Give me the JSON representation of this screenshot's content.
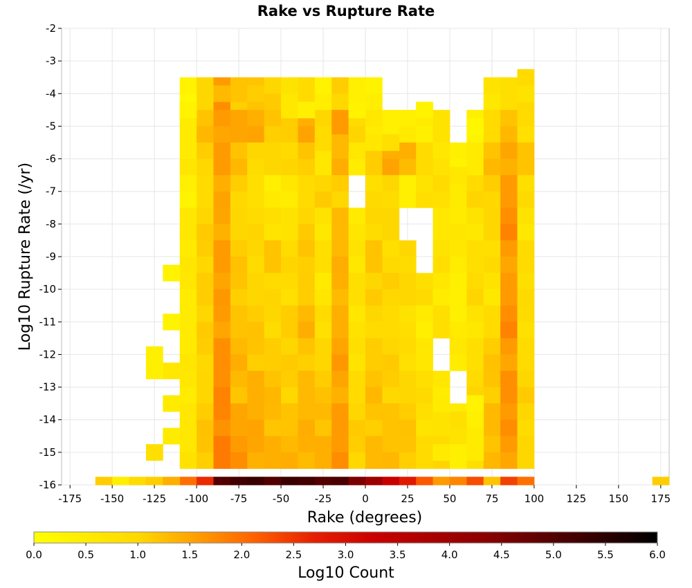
{
  "chart_data": {
    "type": "heatmap",
    "title": "Rake vs Rupture Rate",
    "xlabel": "Rake (degrees)",
    "ylabel": "Log10 Rupture Rate (/yr)",
    "xlim": [
      -180,
      180
    ],
    "ylim": [
      -16,
      -2
    ],
    "x_ticks": [
      -175,
      -150,
      -125,
      -100,
      -75,
      -50,
      -25,
      0,
      25,
      50,
      75,
      100,
      125,
      150,
      175
    ],
    "y_ticks": [
      -2,
      -3,
      -4,
      -5,
      -6,
      -7,
      -8,
      -9,
      -10,
      -11,
      -12,
      -13,
      -14,
      -15,
      -16
    ],
    "x_tick_labels": [
      "-175",
      "-150",
      "-125",
      "-100",
      "-75",
      "-50",
      "-25",
      "0",
      "25",
      "50",
      "75",
      "100",
      "125",
      "150",
      "175"
    ],
    "y_tick_labels": [
      "-2",
      "-3",
      "-4",
      "-5",
      "-6",
      "-7",
      "-8",
      "-9",
      "-10",
      "-11",
      "-12",
      "-13",
      "-14",
      "-15",
      "-16"
    ],
    "grid": true,
    "bin_width": 10,
    "bin_height": 0.5,
    "colorbar": {
      "label": "Log10 Count",
      "min": 0.0,
      "max": 6.0,
      "ticks": [
        0.0,
        0.5,
        1.0,
        1.5,
        2.0,
        2.5,
        3.0,
        3.5,
        4.0,
        4.5,
        5.0,
        5.5,
        6.0
      ],
      "tick_labels": [
        "0.0",
        "0.5",
        "1.0",
        "1.5",
        "2.0",
        "2.5",
        "3.0",
        "3.5",
        "4.0",
        "4.5",
        "5.0",
        "5.5",
        "6.0"
      ],
      "colors": [
        "#ffff00",
        "#ffd700",
        "#ffa500",
        "#ff6400",
        "#e61e00",
        "#c80000",
        "#8c0000",
        "#000000"
      ]
    },
    "rake_bins": [
      -105,
      -95,
      -85,
      -75,
      -65,
      -55,
      -45,
      -35,
      -25,
      -15,
      -5,
      5,
      15,
      25,
      35,
      45,
      55,
      65,
      75,
      85,
      95
    ],
    "rate_rows": [
      -4,
      -5,
      -6,
      -7,
      -8,
      -9,
      -10,
      -11,
      -12,
      -13,
      -14,
      -15,
      -16
    ],
    "grid_values": [
      [
        0.3,
        1.0,
        1.6,
        1.2,
        1.2,
        1.0,
        0.7,
        0.9,
        0.3,
        1.1,
        0.4,
        0.3,
        null,
        null,
        null,
        null,
        null,
        null,
        0.7,
        0.8,
        0.8
      ],
      [
        0.5,
        1.2,
        1.6,
        1.5,
        1.4,
        1.2,
        1.1,
        1.4,
        1.0,
        1.6,
        0.9,
        0.6,
        0.4,
        0.4,
        0.5,
        0.7,
        null,
        0.4,
        0.9,
        1.2,
        0.9
      ],
      [
        0.5,
        1.1,
        1.6,
        1.2,
        1.0,
        1.0,
        0.9,
        1.2,
        0.6,
        1.3,
        0.6,
        1.1,
        1.4,
        1.4,
        0.9,
        0.6,
        0.4,
        0.5,
        1.2,
        1.5,
        1.2
      ],
      [
        0.4,
        0.9,
        1.4,
        1.1,
        0.8,
        0.4,
        0.6,
        0.9,
        1.0,
        1.1,
        null,
        0.8,
        1.0,
        0.4,
        0.7,
        0.9,
        0.5,
        0.9,
        1.1,
        1.6,
        0.8
      ],
      [
        0.6,
        1.0,
        1.5,
        1.0,
        0.9,
        0.8,
        0.7,
        1.0,
        0.7,
        1.3,
        0.5,
        1.0,
        1.0,
        null,
        null,
        0.6,
        0.5,
        0.7,
        1.0,
        1.7,
        0.7
      ],
      [
        0.5,
        1.1,
        1.6,
        1.1,
        1.0,
        1.2,
        0.9,
        1.2,
        0.8,
        1.3,
        0.7,
        1.2,
        0.8,
        1.0,
        null,
        0.7,
        0.6,
        0.8,
        0.8,
        1.6,
        0.9
      ],
      [
        0.6,
        1.1,
        1.5,
        1.2,
        1.0,
        0.9,
        0.9,
        1.1,
        0.5,
        1.4,
        0.8,
        1.0,
        1.1,
        1.0,
        0.8,
        0.6,
        0.4,
        0.9,
        0.7,
        1.6,
        0.8
      ],
      [
        0.5,
        1.0,
        1.6,
        1.2,
        1.1,
        1.0,
        1.1,
        1.3,
        0.9,
        1.4,
        0.6,
        1.0,
        0.9,
        0.7,
        0.5,
        0.8,
        0.4,
        0.7,
        0.9,
        1.7,
        0.9
      ],
      [
        0.5,
        1.1,
        1.7,
        1.3,
        1.2,
        1.1,
        1.0,
        1.2,
        1.0,
        1.5,
        0.8,
        1.1,
        1.0,
        0.9,
        0.6,
        null,
        0.6,
        0.8,
        1.1,
        1.6,
        0.9
      ],
      [
        0.6,
        1.0,
        1.7,
        1.3,
        1.4,
        1.2,
        1.1,
        1.3,
        1.1,
        1.5,
        0.9,
        1.2,
        1.1,
        1.0,
        0.8,
        0.6,
        null,
        0.9,
        1.2,
        1.7,
        1.0
      ],
      [
        0.6,
        1.1,
        1.8,
        1.5,
        1.4,
        1.3,
        1.2,
        1.3,
        1.3,
        1.6,
        1.0,
        1.2,
        1.2,
        1.1,
        0.8,
        0.7,
        0.5,
        0.8,
        1.3,
        1.6,
        1.0
      ],
      [
        0.6,
        1.2,
        1.9,
        1.6,
        1.5,
        1.4,
        1.3,
        1.4,
        1.4,
        1.6,
        1.1,
        1.3,
        1.2,
        1.2,
        0.9,
        0.9,
        0.5,
        0.8,
        1.2,
        1.6,
        1.0
      ],
      [
        2.0,
        2.6,
        5.0,
        5.2,
        5.3,
        5.0,
        5.3,
        5.2,
        5.0,
        5.1,
        4.5,
        4.0,
        3.3,
        2.8,
        2.2,
        1.6,
        1.8,
        2.3,
        1.2,
        2.4,
        2.0
      ]
    ],
    "sparse_cells": [
      {
        "rake": -105,
        "rate": -4.5,
        "value": 0.3
      },
      {
        "rake": -75,
        "rate": -4.0,
        "value": 1.2
      },
      {
        "rake": -85,
        "rate": -4.0,
        "value": 1.3
      },
      {
        "rake": -65,
        "rate": -4.0,
        "value": 1.1
      },
      {
        "rake": -45,
        "rate": -4.5,
        "value": 0.6
      },
      {
        "rake": -35,
        "rate": -4.5,
        "value": 0.4
      },
      {
        "rake": -25,
        "rate": -5.5,
        "value": 0.9
      },
      {
        "rake": -15,
        "rate": -5.5,
        "value": 1.3
      },
      {
        "rake": -5,
        "rate": -4.5,
        "value": 0.3
      },
      {
        "rake": 5,
        "rate": -5.5,
        "value": 0.6
      },
      {
        "rake": 15,
        "rate": -5.5,
        "value": 0.8
      },
      {
        "rake": 35,
        "rate": -4.5,
        "value": 0.3
      },
      {
        "rake": 55,
        "rate": -6.5,
        "value": 0.6
      },
      {
        "rake": 65,
        "rate": -5.0,
        "value": 0.2
      },
      {
        "rake": 95,
        "rate": -3.5,
        "value": 0.9
      },
      {
        "rake": 95,
        "rate": -4.0,
        "value": 0.7
      },
      {
        "rake": -115,
        "rate": -9.5,
        "value": 0.3
      },
      {
        "rake": -115,
        "rate": -11.0,
        "value": 0.3
      },
      {
        "rake": -115,
        "rate": -12.5,
        "value": 0.6
      },
      {
        "rake": -115,
        "rate": -13.5,
        "value": 0.5
      },
      {
        "rake": -115,
        "rate": -14.5,
        "value": 0.5
      },
      {
        "rake": -125,
        "rate": -12.0,
        "value": 0.4
      },
      {
        "rake": -125,
        "rate": -12.5,
        "value": 0.4
      },
      {
        "rake": -125,
        "rate": -15.0,
        "value": 0.8
      },
      {
        "rake": 65,
        "rate": -13.5,
        "value": 0.3
      },
      {
        "rake": 55,
        "rate": -14.0,
        "value": 0.8
      },
      {
        "rake": 55,
        "rate": -14.5,
        "value": 0.7
      },
      {
        "rake": 65,
        "rate": -14.0,
        "value": 0.4
      },
      {
        "rake": 45,
        "rate": -13.5,
        "value": 0.5
      },
      {
        "rake": 45,
        "rate": -15.0,
        "value": 0.5
      },
      {
        "rake": 55,
        "rate": -15.0,
        "value": 0.4
      },
      {
        "rake": 65,
        "rate": -15.0,
        "value": 0.5
      },
      {
        "rake": 65,
        "rate": -14.5,
        "value": 0.5
      },
      {
        "rake": -155,
        "rate": -16.0,
        "value": 1.1
      },
      {
        "rake": -145,
        "rate": -16.0,
        "value": 0.4
      },
      {
        "rake": -135,
        "rate": -16.0,
        "value": 0.9
      },
      {
        "rake": -125,
        "rate": -16.0,
        "value": 1.1
      },
      {
        "rake": -115,
        "rate": -16.0,
        "value": 1.4
      },
      {
        "rake": 175,
        "rate": -16.0,
        "value": 1.1
      }
    ]
  }
}
